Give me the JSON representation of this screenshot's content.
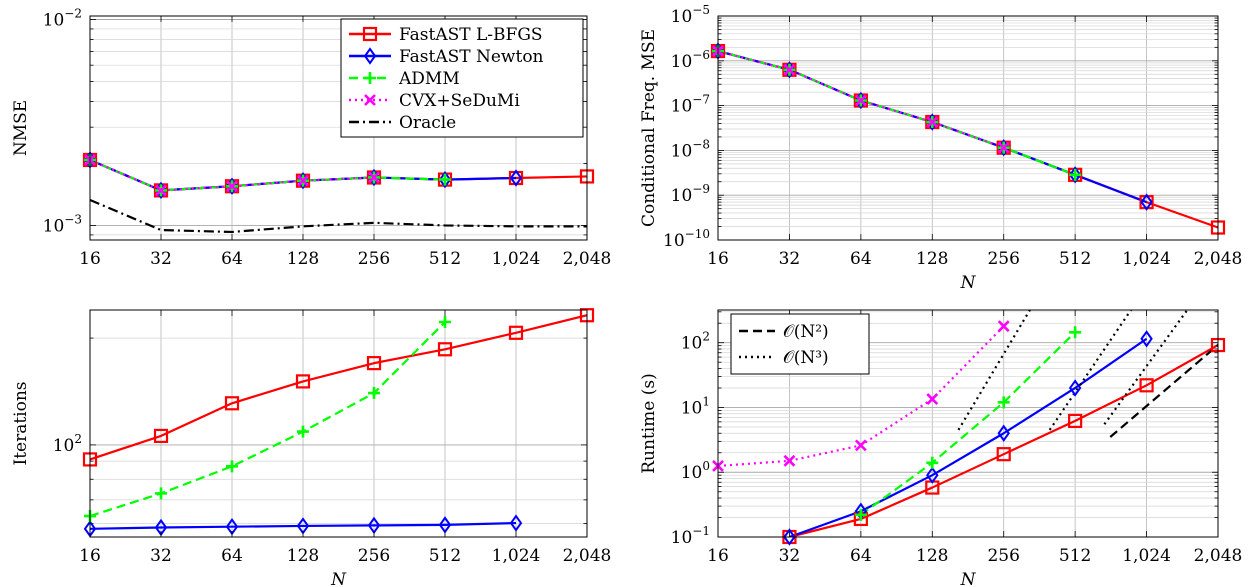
{
  "x_ticks": [
    "16",
    "32",
    "64",
    "128",
    "256",
    "512",
    "1,024",
    "2,048"
  ],
  "colors": {
    "lbfgs": "#ff0000",
    "newton": "#0000ff",
    "admm": "#00ff00",
    "cvx": "#ff00ff",
    "oracle": "#000000",
    "ref": "#000000"
  },
  "chart_data": [
    {
      "type": "line",
      "xlabel": "",
      "ylabel": "NMSE",
      "yscale": "log",
      "ylim": [
        0.00085,
        0.0104
      ],
      "y_ticks": [
        {
          "value": 0.001,
          "label": "10",
          "exp": "−3"
        },
        {
          "value": 0.01,
          "label": "10",
          "exp": "−2"
        }
      ],
      "legend_position": "top-right",
      "series": [
        {
          "name": "FastAST L-BFGS",
          "color_key": "lbfgs",
          "dash": "solid",
          "marker": "square",
          "x": [
            16,
            32,
            64,
            128,
            256,
            512,
            1024,
            2048
          ],
          "y": [
            0.00208,
            0.00148,
            0.00155,
            0.00165,
            0.00171,
            0.00167,
            0.0017,
            0.00173
          ]
        },
        {
          "name": "FastAST Newton",
          "color_key": "newton",
          "dash": "solid",
          "marker": "diamond",
          "x": [
            16,
            32,
            64,
            128,
            256,
            512,
            1024
          ],
          "y": [
            0.00208,
            0.00148,
            0.00155,
            0.00165,
            0.00171,
            0.00167,
            0.0017
          ]
        },
        {
          "name": "ADMM",
          "color_key": "admm",
          "dash": "dashed",
          "marker": "plus",
          "x": [
            16,
            32,
            64,
            128,
            256,
            512
          ],
          "y": [
            0.00208,
            0.00148,
            0.00155,
            0.00165,
            0.00171,
            0.00167
          ]
        },
        {
          "name": "CVX+SeDuMi",
          "color_key": "cvx",
          "dash": "dotted",
          "marker": "cross",
          "x": [
            16,
            32,
            64,
            128,
            256
          ],
          "y": [
            0.00208,
            0.00148,
            0.00155,
            0.00165,
            0.00171
          ]
        },
        {
          "name": "Oracle",
          "color_key": "oracle",
          "dash": "dashdot",
          "marker": "none",
          "x": [
            16,
            32,
            64,
            128,
            256,
            512,
            1024,
            2048
          ],
          "y": [
            0.00133,
            0.00095,
            0.00093,
            0.00099,
            0.00103,
            0.001,
            0.00099,
            0.00099
          ]
        }
      ]
    },
    {
      "type": "line",
      "xlabel": "N",
      "ylabel": "Conditional Freq. MSE",
      "yscale": "log",
      "ylim": [
        1e-10,
        1e-05
      ],
      "y_ticks": [
        {
          "value": 1e-10,
          "label": "10",
          "exp": "−10"
        },
        {
          "value": 1e-09,
          "label": "10",
          "exp": "−9"
        },
        {
          "value": 1e-08,
          "label": "10",
          "exp": "−8"
        },
        {
          "value": 1e-07,
          "label": "10",
          "exp": "−7"
        },
        {
          "value": 1e-06,
          "label": "10",
          "exp": "−6"
        },
        {
          "value": 1e-05,
          "label": "10",
          "exp": "−5"
        }
      ],
      "series": [
        {
          "color_key": "lbfgs",
          "dash": "solid",
          "marker": "square",
          "x": [
            16,
            32,
            64,
            128,
            256,
            512,
            1024,
            2048
          ],
          "y": [
            1.65e-06,
            6.3e-07,
            1.3e-07,
            4.3e-08,
            1.15e-08,
            2.85e-09,
            7e-10,
            1.9e-10
          ]
        },
        {
          "color_key": "newton",
          "dash": "solid",
          "marker": "diamond",
          "x": [
            16,
            32,
            64,
            128,
            256,
            512,
            1024
          ],
          "y": [
            1.65e-06,
            6.3e-07,
            1.3e-07,
            4.3e-08,
            1.15e-08,
            2.85e-09,
            7e-10
          ]
        },
        {
          "color_key": "admm",
          "dash": "dashed",
          "marker": "plus",
          "x": [
            16,
            32,
            64,
            128,
            256,
            512
          ],
          "y": [
            1.65e-06,
            6.3e-07,
            1.3e-07,
            4.3e-08,
            1.15e-08,
            2.85e-09
          ]
        },
        {
          "color_key": "cvx",
          "dash": "dotted",
          "marker": "cross",
          "x": [
            16,
            32,
            64,
            128,
            256
          ],
          "y": [
            1.65e-06,
            6.3e-07,
            1.3e-07,
            4.3e-08,
            1.15e-08
          ]
        }
      ]
    },
    {
      "type": "line",
      "xlabel": "N",
      "ylabel": "Iterations",
      "yscale": "log",
      "ylim": [
        55,
        240
      ],
      "y_ticks": [
        {
          "value": 100,
          "label": "10",
          "exp": "2"
        }
      ],
      "series": [
        {
          "color_key": "lbfgs",
          "dash": "solid",
          "marker": "square",
          "x": [
            16,
            32,
            64,
            128,
            256,
            512,
            1024,
            2048
          ],
          "y": [
            91,
            106,
            131,
            151,
            170,
            186,
            207,
            232
          ]
        },
        {
          "color_key": "newton",
          "dash": "solid",
          "marker": "diamond",
          "x": [
            16,
            32,
            64,
            128,
            256,
            512,
            1024
          ],
          "y": [
            58,
            58.5,
            58.8,
            59.1,
            59.3,
            59.5,
            60.2
          ]
        },
        {
          "color_key": "admm",
          "dash": "dashed",
          "marker": "plus",
          "x": [
            16,
            32,
            64,
            128,
            256,
            512
          ],
          "y": [
            63,
            73,
            87,
            109,
            140,
            222
          ]
        }
      ]
    },
    {
      "type": "line",
      "xlabel": "N",
      "ylabel": "Runtime (s)",
      "yscale": "log",
      "ylim": [
        0.1,
        320
      ],
      "y_ticks": [
        {
          "value": 0.1,
          "label": "10",
          "exp": "−1"
        },
        {
          "value": 1,
          "label": "10",
          "exp": "0"
        },
        {
          "value": 10,
          "label": "10",
          "exp": "1"
        },
        {
          "value": 100,
          "label": "10",
          "exp": "2"
        }
      ],
      "legend_position": "top-left",
      "series": [
        {
          "color_key": "lbfgs",
          "dash": "solid",
          "marker": "square",
          "x": [
            32,
            64,
            128,
            256,
            512,
            1024,
            2048
          ],
          "y": [
            0.1,
            0.19,
            0.58,
            1.9,
            6.2,
            22,
            92
          ]
        },
        {
          "color_key": "newton",
          "dash": "solid",
          "marker": "diamond",
          "x": [
            32,
            64,
            128,
            256,
            512,
            1024
          ],
          "y": [
            0.1,
            0.25,
            0.9,
            4,
            20,
            115
          ]
        },
        {
          "color_key": "admm",
          "dash": "dashed",
          "marker": "plus",
          "x": [
            64,
            128,
            256,
            512
          ],
          "y": [
            0.22,
            1.4,
            12,
            145
          ]
        },
        {
          "color_key": "cvx",
          "dash": "dotted",
          "marker": "cross",
          "x": [
            16,
            32,
            64,
            128,
            256
          ],
          "y": [
            1.25,
            1.5,
            2.6,
            13.5,
            180
          ]
        },
        {
          "name": "𝒪(N²)",
          "color_key": "ref",
          "dash": "dashed",
          "marker": "none",
          "x": [
            720,
            2048
          ],
          "y": [
            3.5,
            92
          ]
        },
        {
          "name": "𝒪(N³)",
          "color_key": "ref",
          "dash": "dotted",
          "marker": "none",
          "x": [
            165,
            330
          ],
          "y": [
            4.5,
            320
          ]
        },
        {
          "color_key": "ref",
          "dash": "dotted",
          "marker": "none",
          "x": [
            400,
            880
          ],
          "y": [
            4.5,
            320
          ]
        },
        {
          "color_key": "ref",
          "dash": "dotted",
          "marker": "none",
          "x": [
            680,
            1520
          ],
          "y": [
            5.5,
            320
          ]
        }
      ]
    }
  ]
}
